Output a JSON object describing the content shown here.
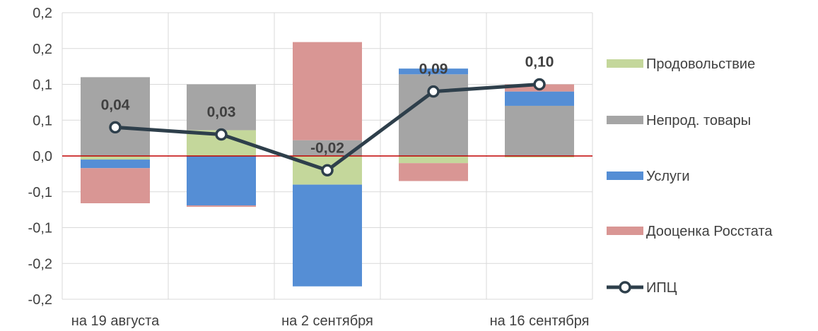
{
  "chart_data": {
    "type": "bar",
    "stacked": true,
    "grid": true,
    "legend_position": "right",
    "categories": [
      "на 19 августа",
      "",
      "на 2 сентября",
      "",
      "на 16 сентября"
    ],
    "x_tick_labels": [
      "на 19 августа",
      "на 2 сентября",
      "на 16 сентября"
    ],
    "y_tick_labels": [
      "0,2",
      "0,2",
      "0,1",
      "0,1",
      "0,0",
      "-0,1",
      "-0,1",
      "-0,2",
      "-0,2"
    ],
    "ylim": [
      -0.2,
      0.2
    ],
    "series": [
      {
        "name": "Продовольствие",
        "color": "#c4d79b",
        "values": [
          -0.005,
          0.036,
          -0.04,
          -0.01,
          -0.002
        ]
      },
      {
        "name": "Непрод. товары",
        "color": "#a5a5a5",
        "values": [
          0.11,
          0.064,
          0.022,
          0.114,
          0.07
        ]
      },
      {
        "name": "Услуги",
        "color": "#558ed5",
        "values": [
          -0.012,
          -0.069,
          -0.142,
          0.008,
          0.02
        ]
      },
      {
        "name": "Дооценка Росстата",
        "color": "#d99694",
        "values": [
          -0.049,
          -0.002,
          0.137,
          -0.025,
          0.01
        ]
      }
    ],
    "line": {
      "name": "ИПЦ",
      "color": "#2e3f4b",
      "values": [
        0.04,
        0.03,
        -0.02,
        0.09,
        0.1
      ]
    },
    "data_labels": [
      "0,04",
      "0,03",
      "-0,02",
      "0,09",
      "0,10"
    ],
    "zero_line_color": "#c00000"
  }
}
